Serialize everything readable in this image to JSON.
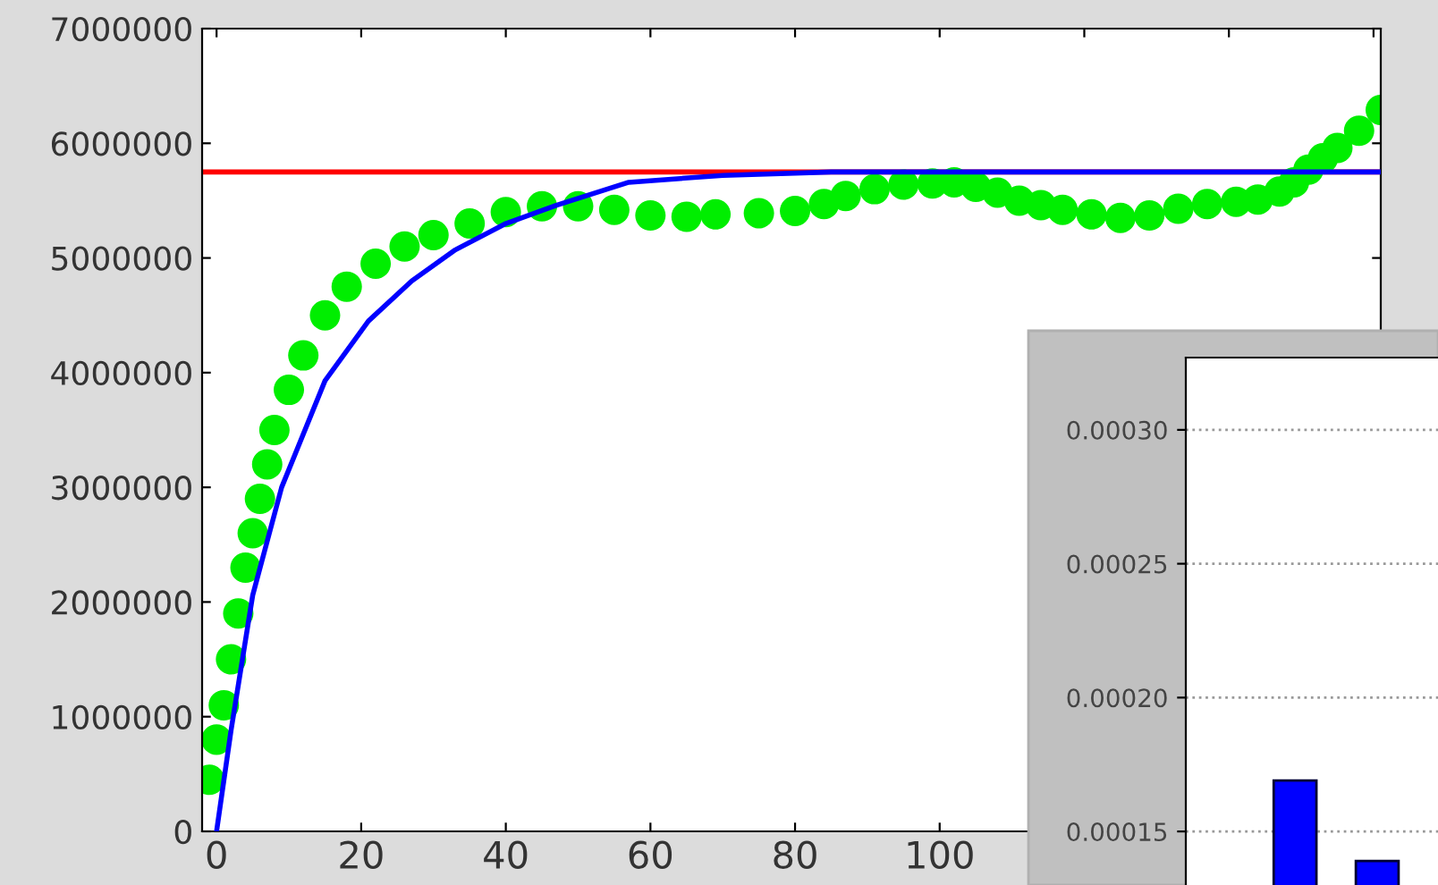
{
  "chart_data": [
    {
      "type": "line",
      "xlim": [
        -2,
        161
      ],
      "ylim": [
        0,
        7000000
      ],
      "xticks": [
        0,
        20,
        40,
        60,
        80,
        100,
        {
          "value": 120,
          "label": null
        },
        {
          "value": 140,
          "label": null
        },
        {
          "value": 160,
          "label": null
        }
      ],
      "yticks": [
        0,
        1000000,
        2000000,
        3000000,
        4000000,
        5000000,
        6000000,
        7000000
      ],
      "grid": false,
      "ref_lines": [
        {
          "axis": "y",
          "value": 5750000,
          "color": "#ff0000"
        }
      ],
      "series": [
        {
          "type": "scatter",
          "color": "#00ee00",
          "marker": "circle",
          "x": [
            -1,
            0,
            1,
            2,
            3,
            4,
            5,
            6,
            7,
            8,
            10,
            12,
            15,
            18,
            22,
            26,
            30,
            35,
            40,
            45,
            50,
            55,
            60,
            65,
            69,
            75,
            80,
            84,
            87,
            91,
            95,
            99,
            102,
            105,
            108,
            111,
            114,
            117,
            121,
            125,
            129,
            133,
            137,
            141,
            144,
            147,
            149,
            151,
            153,
            155,
            158,
            161
          ],
          "values": [
            450000,
            800000,
            1100000,
            1500000,
            1900000,
            2300000,
            2600000,
            2900000,
            3200000,
            3500000,
            3850000,
            4150000,
            4500000,
            4750000,
            4950000,
            5100000,
            5200000,
            5300000,
            5400000,
            5450000,
            5450000,
            5420000,
            5370000,
            5360000,
            5380000,
            5390000,
            5410000,
            5470000,
            5540000,
            5600000,
            5640000,
            5650000,
            5660000,
            5620000,
            5570000,
            5500000,
            5460000,
            5420000,
            5380000,
            5350000,
            5370000,
            5430000,
            5470000,
            5490000,
            5510000,
            5580000,
            5660000,
            5770000,
            5870000,
            5960000,
            6110000,
            6290000
          ]
        },
        {
          "type": "line",
          "color": "#0000ff",
          "marker": "none",
          "x": [
            0,
            2,
            5,
            9,
            15,
            21,
            27,
            33,
            40,
            47,
            57,
            70,
            85,
            100,
            120,
            140,
            161
          ],
          "values": [
            0,
            880000,
            2060000,
            3000000,
            3930000,
            4450000,
            4800000,
            5070000,
            5300000,
            5460000,
            5660000,
            5720000,
            5750000,
            5750000,
            5750000,
            5750000,
            5750000
          ]
        }
      ]
    },
    {
      "type": "bar",
      "categories": [
        null,
        null
      ],
      "values": [
        0.000169,
        0.000139
      ],
      "color": "#0000ff",
      "ylim": [
        0.00013,
        0.000327
      ],
      "yticks": [
        {
          "value": 0.00015,
          "label": "0.00015"
        },
        {
          "value": 0.0002,
          "label": "0.00020"
        },
        {
          "value": 0.00025,
          "label": "0.00025"
        },
        {
          "value": 0.0003,
          "label": "0.00030"
        }
      ],
      "grid": "y"
    }
  ]
}
